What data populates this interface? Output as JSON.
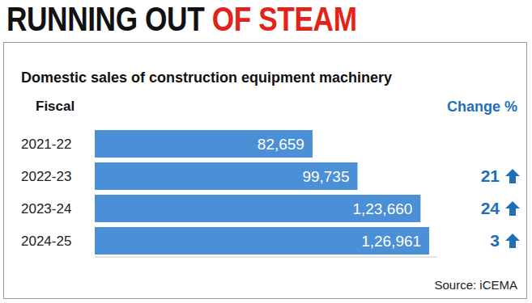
{
  "chart_data": {
    "type": "bar",
    "orientation": "horizontal",
    "title": "RUNNING OUT OF STEAM",
    "subtitle": "Domestic sales of construction equipment machinery",
    "ylabel": "Fiscal",
    "categories": [
      "2021-22",
      "2022-23",
      "2023-24",
      "2024-25"
    ],
    "values": [
      82659,
      99735,
      123660,
      126961
    ],
    "value_labels": [
      "82,659",
      "99,735",
      "1,23,660",
      "1,26,961"
    ],
    "data_labels": true,
    "color": "#4b8fd6",
    "xlim": [
      0,
      130000
    ],
    "tick_labels": false,
    "change_label": "Change %",
    "change": [
      null,
      21,
      24,
      3
    ],
    "source": "Source: iCEMA"
  }
}
